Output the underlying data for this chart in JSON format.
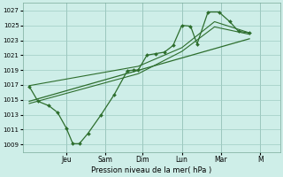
{
  "background_color": "#ceeee8",
  "grid_color": "#a0ccc4",
  "line_color": "#2d6e2d",
  "marker_color": "#2d6e2d",
  "xlabel": "Pression niveau de la mer( hPa )",
  "ylim": [
    1008,
    1028
  ],
  "yticks": [
    1009,
    1011,
    1013,
    1015,
    1017,
    1019,
    1021,
    1023,
    1025,
    1027
  ],
  "day_labels": [
    "Jeu",
    "Sam",
    "Dim",
    "Lun",
    "Mar",
    "M"
  ],
  "num_days": 6,
  "main_x": [
    0,
    0.4,
    0.9,
    1.3,
    1.7,
    2.0,
    2.3,
    2.7,
    3.3,
    3.9,
    4.5,
    4.8,
    5.0,
    5.4,
    5.8,
    6.2,
    6.6,
    7.0,
    7.4,
    7.7,
    8.2,
    8.7,
    9.2,
    9.6,
    10.1
  ],
  "main_y": [
    1016.8,
    1014.8,
    1014.2,
    1013.3,
    1011.2,
    1009.1,
    1009.1,
    1010.5,
    1013.0,
    1015.7,
    1018.9,
    1019.0,
    1019.0,
    1021.0,
    1021.2,
    1021.4,
    1022.3,
    1025.0,
    1024.9,
    1022.5,
    1026.8,
    1026.8,
    1025.5,
    1024.2,
    1024.0
  ],
  "upper_x": [
    0,
    5.0,
    7.0,
    8.5,
    10.1
  ],
  "upper_y": [
    1016.9,
    1019.5,
    1022.0,
    1025.5,
    1024.0
  ],
  "lower_x": [
    0,
    5.0,
    7.0,
    8.5,
    10.1
  ],
  "lower_y": [
    1014.5,
    1018.5,
    1021.5,
    1024.8,
    1023.8
  ],
  "trend_x": [
    0,
    10.1
  ],
  "trend_y": [
    1014.8,
    1023.2
  ],
  "xlim": [
    -0.3,
    11.5
  ],
  "day_x_positions": [
    1.7,
    3.5,
    5.2,
    7.0,
    8.8,
    10.6
  ]
}
